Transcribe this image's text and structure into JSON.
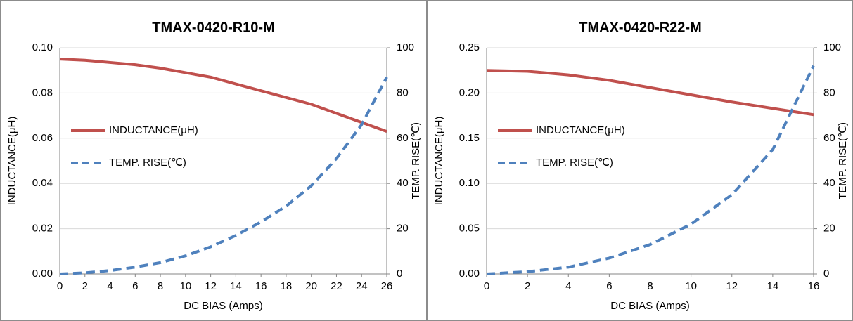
{
  "chart_data": [
    {
      "type": "line",
      "title": "TMAX-0420-R10-M",
      "xlabel": "DC BIAS (Amps)",
      "ylabel": "INDUCTANCE(μH)",
      "y2label": "TEMP. RISE(℃)",
      "x": [
        0,
        2,
        4,
        6,
        8,
        10,
        12,
        14,
        16,
        18,
        20,
        22,
        24,
        26
      ],
      "xlim": [
        0,
        26
      ],
      "xticks": [
        0,
        2,
        4,
        6,
        8,
        10,
        12,
        14,
        16,
        18,
        20,
        22,
        24,
        26
      ],
      "ylim": [
        0,
        0.1
      ],
      "yticks": [
        {
          "value": 0,
          "label": "0.00"
        },
        0.02,
        0.04,
        0.06,
        0.08,
        {
          "value": 0.1,
          "label": "0.10"
        }
      ],
      "y2lim": [
        0,
        100
      ],
      "y2ticks": [
        0,
        20,
        40,
        60,
        80,
        100
      ],
      "grid": true,
      "legend": "left",
      "series": [
        {
          "name": "INDUCTANCE(μH)",
          "color": "#c0504d",
          "line_style": "solid",
          "values": [
            0.095,
            0.0945,
            0.0935,
            0.0925,
            0.091,
            0.089,
            0.087,
            0.084,
            0.081,
            0.078,
            0.075,
            0.071,
            0.067,
            0.063
          ]
        },
        {
          "name": "TEMP. RISE(℃)",
          "color": "#4f81bd",
          "line_style": "dashed",
          "axis": "y2",
          "values": [
            0,
            0.5,
            1.5,
            3,
            5,
            8,
            12,
            17,
            23,
            30,
            39,
            51,
            66,
            87
          ]
        }
      ]
    },
    {
      "type": "line",
      "title": "TMAX-0420-R22-M",
      "xlabel": "DC BIAS (Amps)",
      "ylabel": "INDUCTANCE(μH)",
      "y2label": "TEMP. RISE(℃)",
      "x": [
        0,
        2,
        4,
        6,
        8,
        10,
        12,
        14,
        16
      ],
      "xlim": [
        0,
        16
      ],
      "xticks": [
        0,
        2,
        4,
        6,
        8,
        10,
        12,
        14,
        16
      ],
      "ylim": [
        0,
        0.25
      ],
      "yticks": [
        {
          "value": 0,
          "label": "0.00"
        },
        0.05,
        {
          "value": 0.1,
          "label": "0.10"
        },
        0.15,
        {
          "value": 0.2,
          "label": "0.20"
        },
        0.25
      ],
      "y2lim": [
        0,
        100
      ],
      "y2ticks": [
        0,
        20,
        40,
        60,
        80,
        100
      ],
      "grid": true,
      "legend": "left",
      "series": [
        {
          "name": "INDUCTANCE(μH)",
          "color": "#c0504d",
          "line_style": "solid",
          "values": [
            0.225,
            0.224,
            0.22,
            0.214,
            0.206,
            0.198,
            0.19,
            0.183,
            0.176
          ]
        },
        {
          "name": "TEMP. RISE(℃)",
          "color": "#4f81bd",
          "line_style": "dashed",
          "axis": "y2",
          "values": [
            0,
            1,
            3,
            7,
            13,
            22,
            35,
            55,
            92
          ]
        }
      ]
    }
  ]
}
